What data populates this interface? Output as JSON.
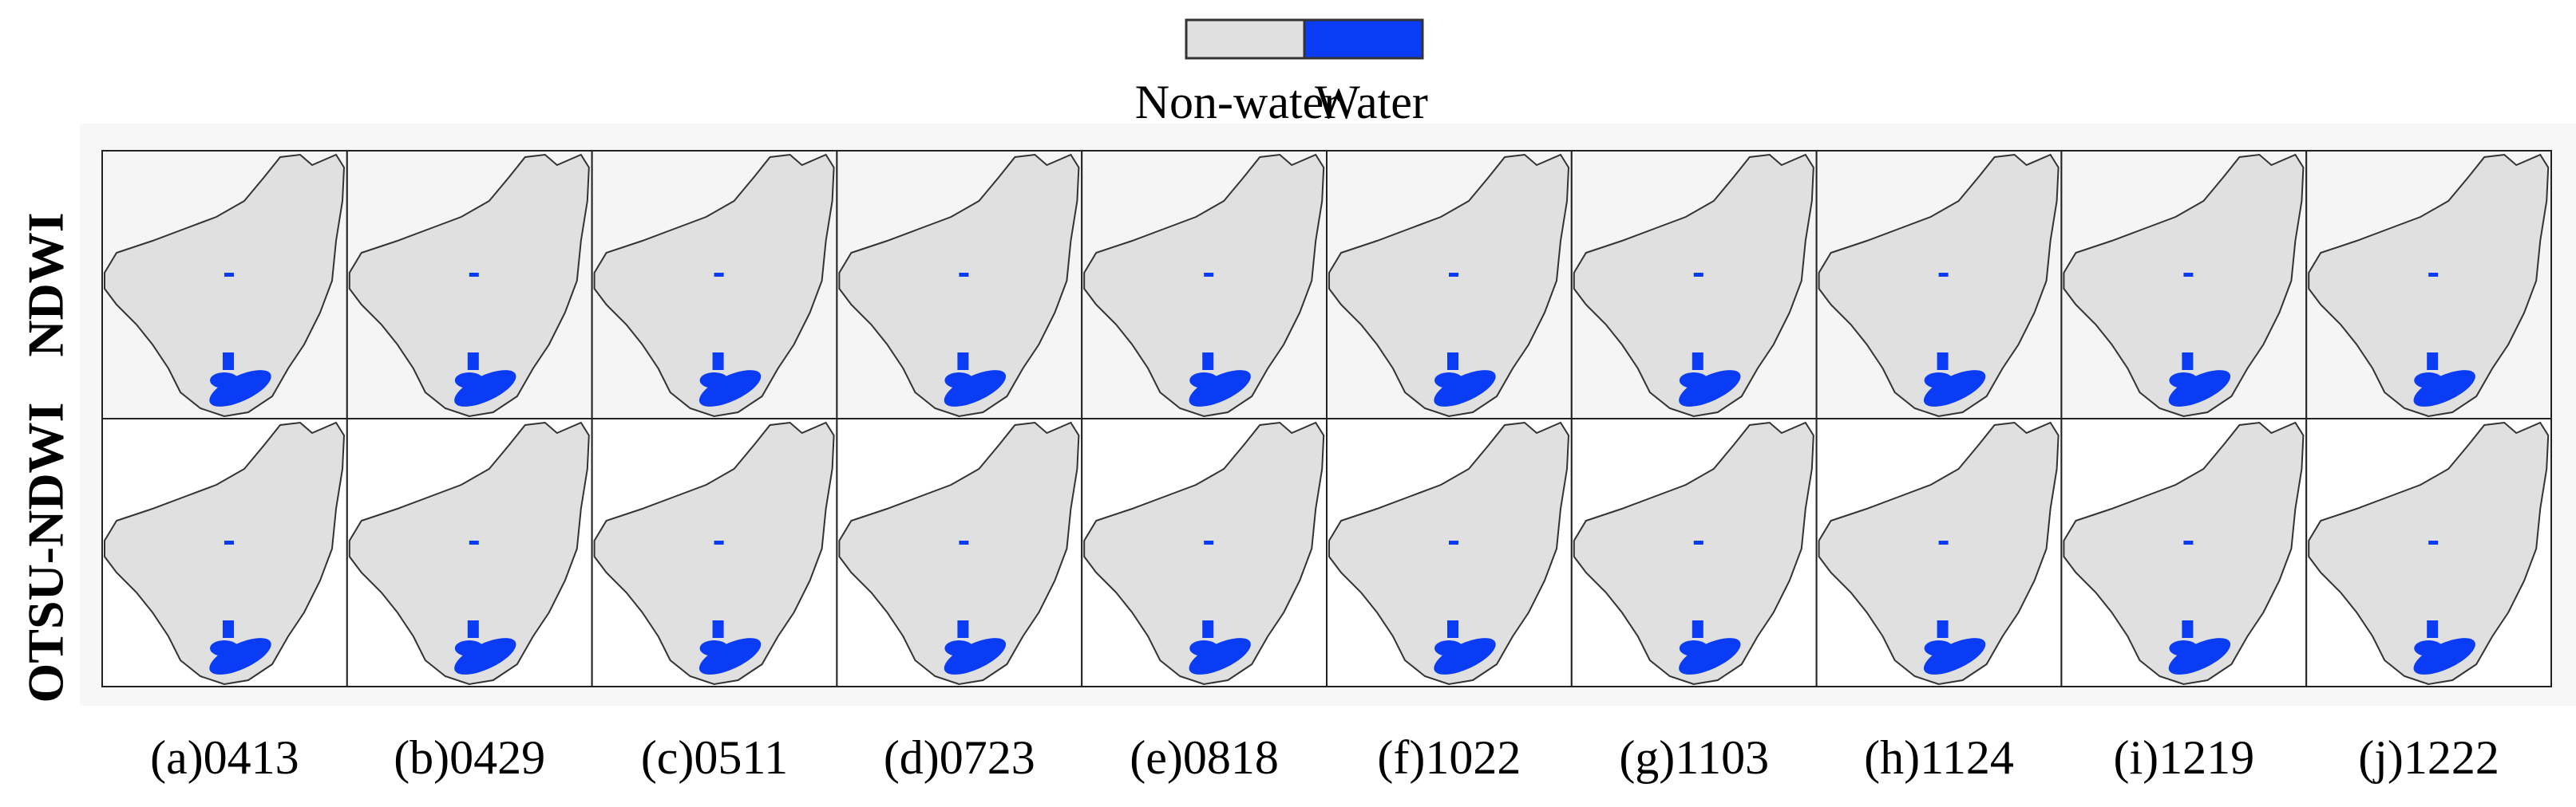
{
  "legend": {
    "items": [
      "Non-water",
      "Water"
    ]
  },
  "rows": [
    "NDWI",
    "OTSU-NDWI"
  ],
  "captions": [
    "(a)0413",
    "(b)0429",
    "(c)0511",
    "(d)0723",
    "(e)0818",
    "(f)1022",
    "(g)1103",
    "(h)1124",
    "(i)1219",
    "(j)1222"
  ]
}
